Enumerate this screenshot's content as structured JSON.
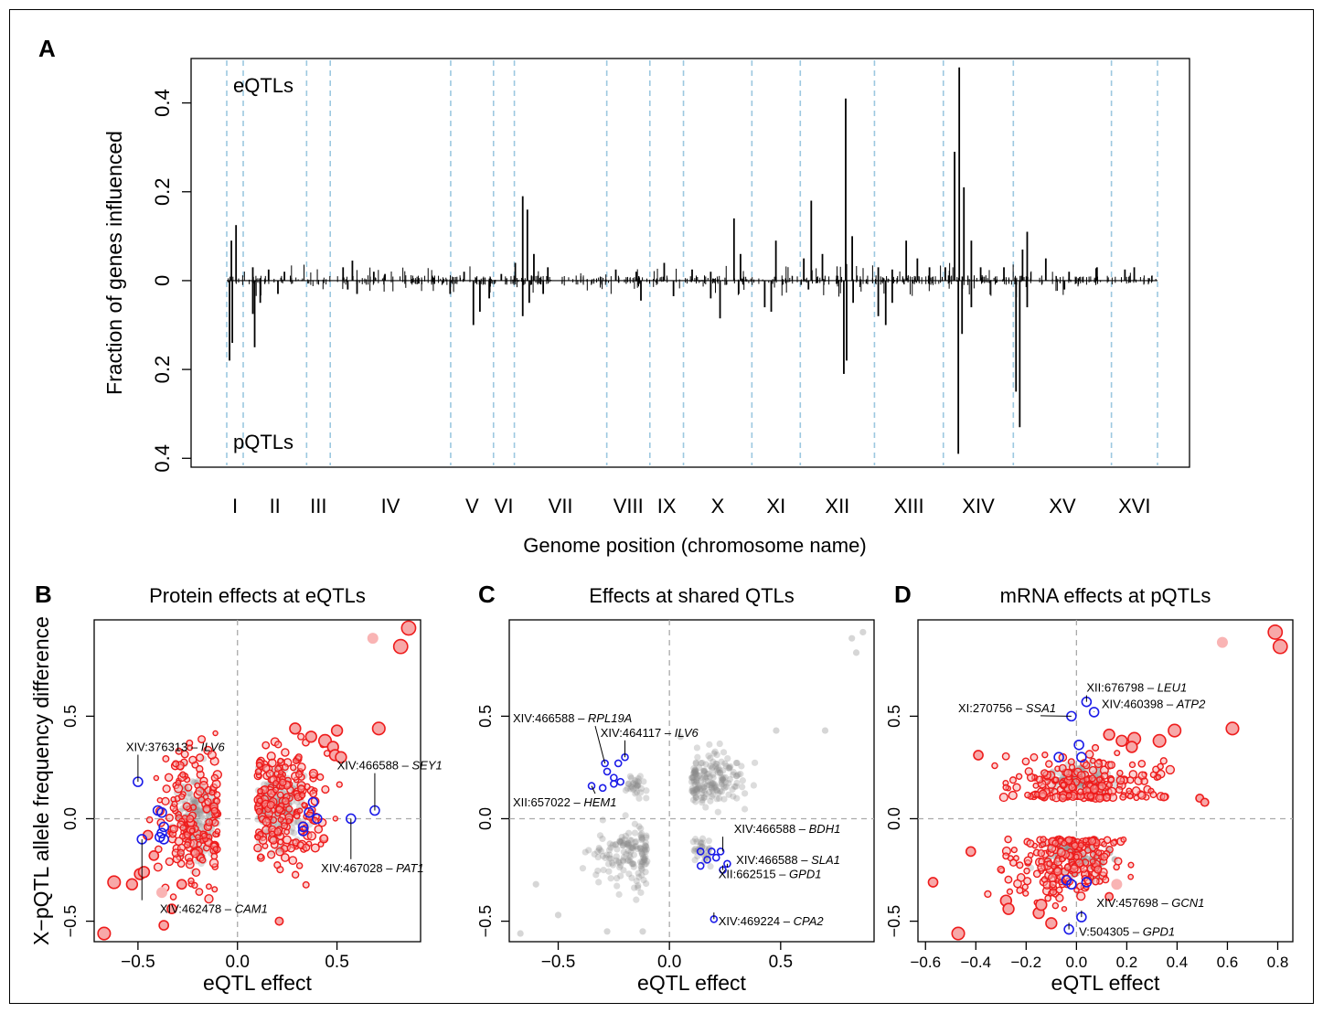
{
  "panel_labels": {
    "a": "A",
    "b": "B",
    "c": "C",
    "d": "D"
  },
  "colors": {
    "grid": "#9cc8e0",
    "red": "#ee1c1c",
    "red_fill": "#f7a8a8",
    "light_red": "#f9b4b4",
    "blue": "#1c1ce8",
    "grey": "#8a8a8a",
    "axis": "#000000",
    "zero": "#aaaaaa"
  },
  "chart_data": [
    {
      "type": "bar",
      "ylabel": "Fraction of genes influenced",
      "xlabel": "Genome position (chromosome name)",
      "top_label": "eQTLs",
      "bottom_label": "pQTLs",
      "ylim": [
        -0.42,
        0.5
      ],
      "yticks": [
        {
          "value": 0.4,
          "label": "0.4"
        },
        {
          "value": 0.2,
          "label": "0.2"
        },
        {
          "value": 0,
          "label": "0"
        },
        {
          "value": -0.2,
          "label": "0.2"
        },
        {
          "value": -0.4,
          "label": "0.4"
        }
      ],
      "chromosomes": [
        "I",
        "II",
        "III",
        "IV",
        "V",
        "VI",
        "VII",
        "VIII",
        "IX",
        "X",
        "XI",
        "XII",
        "XIII",
        "XIV",
        "XV",
        "XVI"
      ],
      "chromosome_bounds": [
        0,
        0.0177,
        0.0858,
        0.1112,
        0.2406,
        0.2866,
        0.309,
        0.4083,
        0.4546,
        0.4907,
        0.5642,
        0.6162,
        0.6959,
        0.7699,
        0.8451,
        0.9505,
        1.0
      ],
      "eqtl_peaks": [
        {
          "pos": 0.005,
          "value": 0.09
        },
        {
          "pos": 0.01,
          "value": 0.125
        },
        {
          "pos": 0.028,
          "value": 0.03
        },
        {
          "pos": 0.045,
          "value": 0.025
        },
        {
          "pos": 0.062,
          "value": 0.02
        },
        {
          "pos": 0.125,
          "value": 0.03
        },
        {
          "pos": 0.135,
          "value": 0.045
        },
        {
          "pos": 0.158,
          "value": 0.02
        },
        {
          "pos": 0.17,
          "value": 0.015
        },
        {
          "pos": 0.255,
          "value": 0.02
        },
        {
          "pos": 0.295,
          "value": 0.015
        },
        {
          "pos": 0.31,
          "value": 0.04
        },
        {
          "pos": 0.318,
          "value": 0.19
        },
        {
          "pos": 0.323,
          "value": 0.16
        },
        {
          "pos": 0.33,
          "value": 0.06
        },
        {
          "pos": 0.345,
          "value": 0.03
        },
        {
          "pos": 0.418,
          "value": 0.025
        },
        {
          "pos": 0.44,
          "value": 0.02
        },
        {
          "pos": 0.47,
          "value": 0.04
        },
        {
          "pos": 0.5,
          "value": 0.025
        },
        {
          "pos": 0.52,
          "value": 0.02
        },
        {
          "pos": 0.545,
          "value": 0.14
        },
        {
          "pos": 0.552,
          "value": 0.06
        },
        {
          "pos": 0.59,
          "value": 0.09
        },
        {
          "pos": 0.62,
          "value": 0.05
        },
        {
          "pos": 0.628,
          "value": 0.18
        },
        {
          "pos": 0.64,
          "value": 0.06
        },
        {
          "pos": 0.665,
          "value": 0.41
        },
        {
          "pos": 0.672,
          "value": 0.1
        },
        {
          "pos": 0.7,
          "value": 0.03
        },
        {
          "pos": 0.715,
          "value": 0.025
        },
        {
          "pos": 0.73,
          "value": 0.09
        },
        {
          "pos": 0.742,
          "value": 0.05
        },
        {
          "pos": 0.755,
          "value": 0.03
        },
        {
          "pos": 0.772,
          "value": 0.03
        },
        {
          "pos": 0.782,
          "value": 0.29
        },
        {
          "pos": 0.787,
          "value": 0.48
        },
        {
          "pos": 0.792,
          "value": 0.21
        },
        {
          "pos": 0.8,
          "value": 0.09
        },
        {
          "pos": 0.81,
          "value": 0.03
        },
        {
          "pos": 0.835,
          "value": 0.03
        },
        {
          "pos": 0.855,
          "value": 0.07
        },
        {
          "pos": 0.86,
          "value": 0.11
        },
        {
          "pos": 0.88,
          "value": 0.05
        },
        {
          "pos": 0.905,
          "value": 0.02
        },
        {
          "pos": 0.935,
          "value": 0.03
        },
        {
          "pos": 0.965,
          "value": 0.025
        },
        {
          "pos": 0.975,
          "value": 0.03
        }
      ],
      "pqtl_peaks": [
        {
          "pos": 0.003,
          "value": 0.18
        },
        {
          "pos": 0.006,
          "value": 0.14
        },
        {
          "pos": 0.028,
          "value": 0.075
        },
        {
          "pos": 0.03,
          "value": 0.15
        },
        {
          "pos": 0.036,
          "value": 0.05
        },
        {
          "pos": 0.055,
          "value": 0.03
        },
        {
          "pos": 0.13,
          "value": 0.02
        },
        {
          "pos": 0.14,
          "value": 0.03
        },
        {
          "pos": 0.24,
          "value": 0.03
        },
        {
          "pos": 0.265,
          "value": 0.1
        },
        {
          "pos": 0.272,
          "value": 0.07
        },
        {
          "pos": 0.282,
          "value": 0.04
        },
        {
          "pos": 0.318,
          "value": 0.08
        },
        {
          "pos": 0.325,
          "value": 0.05
        },
        {
          "pos": 0.34,
          "value": 0.03
        },
        {
          "pos": 0.445,
          "value": 0.045
        },
        {
          "pos": 0.48,
          "value": 0.035
        },
        {
          "pos": 0.52,
          "value": 0.04
        },
        {
          "pos": 0.53,
          "value": 0.085
        },
        {
          "pos": 0.55,
          "value": 0.03
        },
        {
          "pos": 0.578,
          "value": 0.06
        },
        {
          "pos": 0.585,
          "value": 0.07
        },
        {
          "pos": 0.625,
          "value": 0.02
        },
        {
          "pos": 0.663,
          "value": 0.21
        },
        {
          "pos": 0.666,
          "value": 0.18
        },
        {
          "pos": 0.673,
          "value": 0.05
        },
        {
          "pos": 0.7,
          "value": 0.08
        },
        {
          "pos": 0.708,
          "value": 0.1
        },
        {
          "pos": 0.715,
          "value": 0.05
        },
        {
          "pos": 0.786,
          "value": 0.39
        },
        {
          "pos": 0.79,
          "value": 0.12
        },
        {
          "pos": 0.8,
          "value": 0.06
        },
        {
          "pos": 0.848,
          "value": 0.25
        },
        {
          "pos": 0.852,
          "value": 0.33
        },
        {
          "pos": 0.86,
          "value": 0.06
        },
        {
          "pos": 0.9,
          "value": 0.02
        }
      ]
    },
    {
      "type": "scatter",
      "title": "Protein effects at eQTLs",
      "xlabel": "eQTL effect",
      "ylabel": "X−pQTL allele frequency difference",
      "xlim": [
        -0.72,
        0.92
      ],
      "ylim": [
        -0.6,
        0.97
      ],
      "xticks": [
        {
          "value": -0.5,
          "label": "−0.5"
        },
        {
          "value": 0,
          "label": "0.0"
        },
        {
          "value": 0.5,
          "label": "0.5"
        }
      ],
      "yticks": [
        {
          "value": -0.5,
          "label": "−0.5"
        },
        {
          "value": 0,
          "label": "0.0"
        },
        {
          "value": 0.5,
          "label": "0.5"
        }
      ],
      "highlight_points": [
        {
          "x": 0.86,
          "y": 0.93,
          "size": 3
        },
        {
          "x": 0.82,
          "y": 0.84,
          "size": 3
        },
        {
          "x": 0.71,
          "y": 0.44,
          "size": 2.5
        },
        {
          "x": -0.67,
          "y": -0.56,
          "size": 2.5
        },
        {
          "x": -0.62,
          "y": -0.31,
          "size": 2.5
        },
        {
          "x": -0.53,
          "y": -0.32,
          "size": 2
        },
        {
          "x": -0.49,
          "y": -0.27,
          "size": 2
        },
        {
          "x": -0.47,
          "y": -0.26,
          "size": 2
        },
        {
          "x": 0.5,
          "y": 0.43,
          "size": 2
        },
        {
          "x": 0.44,
          "y": 0.38,
          "size": 2.5
        },
        {
          "x": 0.37,
          "y": 0.4,
          "size": 2
        },
        {
          "x": 0.29,
          "y": 0.44,
          "size": 2
        },
        {
          "x": 0.48,
          "y": 0.35,
          "size": 2
        },
        {
          "x": 0.49,
          "y": 0.31,
          "size": 2
        },
        {
          "x": 0.52,
          "y": 0.3,
          "size": 2
        },
        {
          "x": -0.45,
          "y": -0.08,
          "size": 1.5
        },
        {
          "x": -0.42,
          "y": -0.18,
          "size": 1.5
        },
        {
          "x": -0.37,
          "y": -0.52,
          "size": 1.5
        },
        {
          "x": 0.21,
          "y": -0.5,
          "size": 1
        },
        {
          "x": -0.28,
          "y": -0.32,
          "size": 1.5
        },
        {
          "x": -0.33,
          "y": -0.44,
          "size": 1.5
        }
      ],
      "faded_points": [
        {
          "x": 0.68,
          "y": 0.88
        },
        {
          "x": -0.38,
          "y": -0.36
        }
      ],
      "blue_points": [
        {
          "x": -0.5,
          "y": 0.18
        },
        {
          "x": -0.4,
          "y": 0.04
        },
        {
          "x": -0.38,
          "y": 0.03
        },
        {
          "x": -0.37,
          "y": -0.04
        },
        {
          "x": -0.38,
          "y": -0.07
        },
        {
          "x": -0.39,
          "y": -0.09
        },
        {
          "x": -0.37,
          "y": -0.1
        },
        {
          "x": -0.48,
          "y": -0.1
        },
        {
          "x": 0.69,
          "y": 0.04
        },
        {
          "x": 0.38,
          "y": 0.08
        },
        {
          "x": 0.4,
          "y": 0.0
        },
        {
          "x": 0.33,
          "y": -0.04
        },
        {
          "x": 0.33,
          "y": -0.06
        },
        {
          "x": 0.36,
          "y": 0.03
        },
        {
          "x": 0.57,
          "y": 0.0
        }
      ],
      "annotations": [
        {
          "text": "XIV:376313 – ",
          "gene": "ILV6",
          "x": -0.5,
          "y": 0.18,
          "lx": -0.56,
          "ly": 0.33
        },
        {
          "text": "XIV:466588 – ",
          "gene": "SEY1",
          "x": 0.69,
          "y": 0.04,
          "lx": 0.5,
          "ly": 0.24
        },
        {
          "text": "XIV:467028 – ",
          "gene": "PAT1",
          "x": 0.57,
          "y": 0.0,
          "lx": 0.42,
          "ly": -0.26
        },
        {
          "text": "XIV:462478 – ",
          "gene": "CAM1",
          "x": -0.48,
          "y": -0.1,
          "lx": -0.39,
          "ly": -0.46
        }
      ]
    },
    {
      "type": "scatter",
      "title": "Effects at shared QTLs",
      "xlabel": "eQTL effect",
      "xlim": [
        -0.72,
        0.92
      ],
      "ylim": [
        -0.6,
        0.97
      ],
      "xticks": [
        {
          "value": -0.5,
          "label": "−0.5"
        },
        {
          "value": 0,
          "label": "0.0"
        },
        {
          "value": 0.5,
          "label": "0.5"
        }
      ],
      "yticks": [
        {
          "value": -0.5,
          "label": "−0.5"
        },
        {
          "value": 0,
          "label": "0.0"
        },
        {
          "value": 0.5,
          "label": "0.5"
        }
      ],
      "blue_points": [
        {
          "x": -0.29,
          "y": 0.27
        },
        {
          "x": -0.23,
          "y": 0.27
        },
        {
          "x": -0.2,
          "y": 0.3
        },
        {
          "x": -0.28,
          "y": 0.23
        },
        {
          "x": -0.25,
          "y": 0.2
        },
        {
          "x": -0.22,
          "y": 0.18
        },
        {
          "x": -0.25,
          "y": 0.17
        },
        {
          "x": -0.35,
          "y": 0.16
        },
        {
          "x": -0.3,
          "y": 0.15
        },
        {
          "x": 0.14,
          "y": -0.16
        },
        {
          "x": 0.19,
          "y": -0.16
        },
        {
          "x": 0.23,
          "y": -0.16
        },
        {
          "x": 0.17,
          "y": -0.2
        },
        {
          "x": 0.21,
          "y": -0.19
        },
        {
          "x": 0.14,
          "y": -0.23
        },
        {
          "x": 0.26,
          "y": -0.22
        },
        {
          "x": 0.24,
          "y": -0.25
        },
        {
          "x": 0.2,
          "y": -0.49
        }
      ],
      "annotations": [
        {
          "text": "XIV:466588 – ",
          "gene": "RPL19A",
          "x": -0.29,
          "y": 0.27,
          "lx": -0.72,
          "ly": 0.47
        },
        {
          "text": "XIV:464117 – ",
          "gene": "ILV6",
          "x": -0.2,
          "y": 0.3,
          "lx": -0.31,
          "ly": 0.4
        },
        {
          "text": "XII:657022 – ",
          "gene": "HEM1",
          "x": -0.35,
          "y": 0.16,
          "lx": -0.72,
          "ly": 0.06
        },
        {
          "text": "XIV:466588 – ",
          "gene": "BDH1",
          "x": 0.24,
          "y": -0.16,
          "lx": 0.29,
          "ly": -0.07
        },
        {
          "text": "XIV:466588 – ",
          "gene": "SLA1",
          "x": 0.26,
          "y": -0.22,
          "lx": 0.3,
          "ly": -0.22
        },
        {
          "text": "XII:662515 – ",
          "gene": "GPD1",
          "x": 0.24,
          "y": -0.25,
          "lx": 0.22,
          "ly": -0.29
        },
        {
          "text": "XIV:469224 – ",
          "gene": "CPA2",
          "x": 0.2,
          "y": -0.49,
          "lx": 0.22,
          "ly": -0.52
        }
      ]
    },
    {
      "type": "scatter",
      "title": "mRNA effects at pQTLs",
      "xlabel": "eQTL effect",
      "xlim": [
        -0.63,
        0.86
      ],
      "ylim": [
        -0.6,
        0.97
      ],
      "xticks": [
        {
          "value": -0.6,
          "label": "−0.6"
        },
        {
          "value": -0.4,
          "label": "−0.4"
        },
        {
          "value": -0.2,
          "label": "−0.2"
        },
        {
          "value": 0,
          "label": "0.0"
        },
        {
          "value": 0.2,
          "label": "0.2"
        },
        {
          "value": 0.4,
          "label": "0.4"
        },
        {
          "value": 0.6,
          "label": "0.6"
        },
        {
          "value": 0.8,
          "label": "0.8"
        }
      ],
      "yticks": [
        {
          "value": -0.5,
          "label": "−0.5"
        },
        {
          "value": 0,
          "label": "0.0"
        },
        {
          "value": 0.5,
          "label": "0.5"
        }
      ],
      "highlight_points": [
        {
          "x": 0.79,
          "y": 0.91,
          "size": 3
        },
        {
          "x": 0.81,
          "y": 0.84,
          "size": 3
        },
        {
          "x": 0.62,
          "y": 0.44,
          "size": 2.5
        },
        {
          "x": 0.39,
          "y": 0.43,
          "size": 2.5
        },
        {
          "x": 0.33,
          "y": 0.38,
          "size": 2.5
        },
        {
          "x": 0.23,
          "y": 0.39,
          "size": 2.5
        },
        {
          "x": 0.13,
          "y": 0.41,
          "size": 2
        },
        {
          "x": 0.18,
          "y": 0.38,
          "size": 2
        },
        {
          "x": 0.22,
          "y": 0.35,
          "size": 2
        },
        {
          "x": -0.47,
          "y": -0.56,
          "size": 2.5
        },
        {
          "x": -0.28,
          "y": -0.4,
          "size": 2
        },
        {
          "x": -0.27,
          "y": -0.44,
          "size": 2
        },
        {
          "x": -0.15,
          "y": -0.46,
          "size": 2
        },
        {
          "x": -0.1,
          "y": -0.51,
          "size": 2
        },
        {
          "x": -0.14,
          "y": -0.42,
          "size": 2
        },
        {
          "x": -0.39,
          "y": 0.31,
          "size": 1.5
        },
        {
          "x": -0.57,
          "y": -0.31,
          "size": 1.5
        },
        {
          "x": -0.42,
          "y": -0.16,
          "size": 1.5
        },
        {
          "x": 0.49,
          "y": 0.1,
          "size": 1
        },
        {
          "x": 0.51,
          "y": 0.08,
          "size": 1
        },
        {
          "x": 0.13,
          "y": -0.38,
          "size": 1
        }
      ],
      "faded_points": [
        {
          "x": 0.58,
          "y": 0.86
        },
        {
          "x": 0.16,
          "y": -0.32
        }
      ],
      "blue_points": [
        {
          "x": 0.04,
          "y": 0.57
        },
        {
          "x": 0.07,
          "y": 0.52
        },
        {
          "x": -0.02,
          "y": 0.5
        },
        {
          "x": -0.07,
          "y": 0.3
        },
        {
          "x": 0.02,
          "y": 0.3
        },
        {
          "x": 0.01,
          "y": 0.36
        },
        {
          "x": -0.04,
          "y": -0.3
        },
        {
          "x": -0.02,
          "y": -0.32
        },
        {
          "x": 0.04,
          "y": -0.31
        },
        {
          "x": 0.02,
          "y": -0.48
        },
        {
          "x": -0.03,
          "y": -0.54
        }
      ],
      "annotations": [
        {
          "text": "XII:676798 – ",
          "gene": "LEU1",
          "x": 0.04,
          "y": 0.57,
          "lx": 0.04,
          "ly": 0.62
        },
        {
          "text": "XIV:460398 – ",
          "gene": "ATP2",
          "x": 0.07,
          "y": 0.52,
          "lx": 0.1,
          "ly": 0.54
        },
        {
          "text": "XI:270756 – ",
          "gene": "SSA1",
          "x": -0.02,
          "y": 0.5,
          "lx": -0.47,
          "ly": 0.52
        },
        {
          "text": "XIV:457698 – ",
          "gene": "GCN1",
          "x": 0.02,
          "y": -0.48,
          "lx": 0.08,
          "ly": -0.43
        },
        {
          "text": "V:504305 – ",
          "gene": "GPD1",
          "x": -0.03,
          "y": -0.54,
          "lx": 0.01,
          "ly": -0.57
        }
      ]
    }
  ]
}
